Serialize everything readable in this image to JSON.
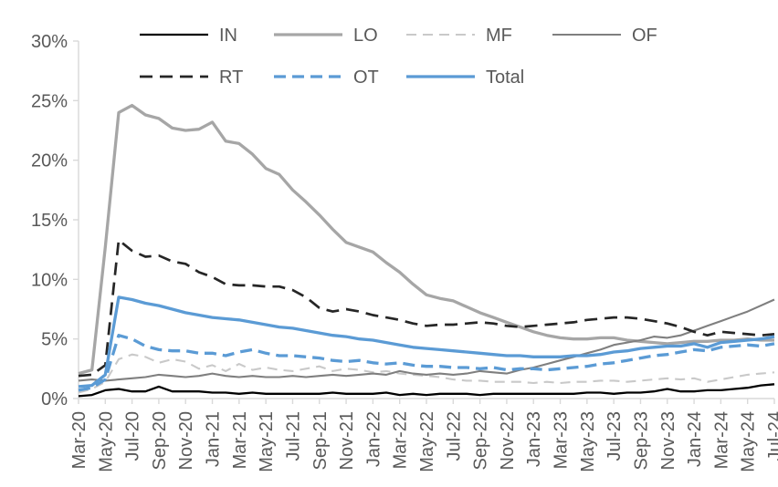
{
  "page": {
    "background": "#ffffff"
  },
  "chart_data": {
    "type": "line",
    "title": "",
    "xlabel": "",
    "ylabel": "",
    "ylim": [
      0,
      30
    ],
    "y_tick_labels": [
      "30%",
      "25%",
      "20%",
      "15%",
      "10%",
      "5%",
      "0%"
    ],
    "x_tick_step": 2,
    "x_tick_labels": [
      "Mar-20",
      "May-20",
      "Jul-20",
      "Sep-20",
      "Nov-20",
      "Jan-21",
      "Mar-21",
      "May-21",
      "Jul-21",
      "Sep-21",
      "Nov-21",
      "Jan-22",
      "Mar-22",
      "May-22",
      "Jul-22",
      "Sep-22",
      "Nov-22",
      "Jan-23",
      "Mar-23",
      "May-23",
      "Jul-23",
      "Sep-23",
      "Nov-23",
      "Jan-24",
      "Mar-24",
      "May-24",
      "Jul-24"
    ],
    "categories": [
      "Mar-20",
      "Apr-20",
      "May-20",
      "Jun-20",
      "Jul-20",
      "Aug-20",
      "Sep-20",
      "Oct-20",
      "Nov-20",
      "Dec-20",
      "Jan-21",
      "Feb-21",
      "Mar-21",
      "Apr-21",
      "May-21",
      "Jun-21",
      "Jul-21",
      "Aug-21",
      "Sep-21",
      "Oct-21",
      "Nov-21",
      "Dec-21",
      "Jan-22",
      "Feb-22",
      "Mar-22",
      "Apr-22",
      "May-22",
      "Jun-22",
      "Jul-22",
      "Aug-22",
      "Sep-22",
      "Oct-22",
      "Nov-22",
      "Dec-22",
      "Jan-23",
      "Feb-23",
      "Mar-23",
      "Apr-23",
      "May-23",
      "Jun-23",
      "Jul-23",
      "Aug-23",
      "Sep-23",
      "Oct-23",
      "Nov-23",
      "Dec-23",
      "Jan-24",
      "Feb-24",
      "Mar-24",
      "Apr-24",
      "May-24",
      "Jun-24",
      "Jul-24"
    ],
    "grid": false,
    "axis_color": "#d9d9d9",
    "text_color": "#595959",
    "accent_blue": "#5b9bd5",
    "legend": {
      "position": "top",
      "rows": [
        [
          "IN",
          "LO",
          "MF",
          "OF"
        ],
        [
          "RT",
          "OT",
          "Total"
        ]
      ]
    },
    "series": [
      {
        "name": "IN",
        "color": "#000000",
        "dash": null,
        "width": 2.3,
        "values": [
          0.2,
          0.3,
          0.7,
          0.8,
          0.6,
          0.6,
          1.0,
          0.6,
          0.6,
          0.6,
          0.5,
          0.5,
          0.4,
          0.5,
          0.4,
          0.4,
          0.4,
          0.4,
          0.4,
          0.5,
          0.4,
          0.4,
          0.4,
          0.5,
          0.3,
          0.4,
          0.3,
          0.4,
          0.4,
          0.4,
          0.3,
          0.4,
          0.4,
          0.4,
          0.4,
          0.4,
          0.4,
          0.4,
          0.5,
          0.5,
          0.4,
          0.5,
          0.5,
          0.6,
          0.8,
          0.6,
          0.6,
          0.7,
          0.7,
          0.8,
          0.9,
          1.1,
          1.2
        ]
      },
      {
        "name": "LO",
        "color": "#a6a6a6",
        "dash": null,
        "width": 3.3,
        "values": [
          2.1,
          2.4,
          12.7,
          24.0,
          24.6,
          23.8,
          23.5,
          22.7,
          22.5,
          22.6,
          23.2,
          21.6,
          21.4,
          20.5,
          19.3,
          18.8,
          17.5,
          16.5,
          15.4,
          14.2,
          13.1,
          12.7,
          12.3,
          11.4,
          10.6,
          9.6,
          8.7,
          8.4,
          8.2,
          7.7,
          7.2,
          6.8,
          6.4,
          6.0,
          5.6,
          5.3,
          5.1,
          5.0,
          5.0,
          5.1,
          5.1,
          4.9,
          4.8,
          4.7,
          4.6,
          4.7,
          4.8,
          4.8,
          4.9,
          4.9,
          5.0,
          4.9,
          4.9
        ]
      },
      {
        "name": "MF",
        "color": "#c9c9c9",
        "dash": "11 7",
        "width": 2.1,
        "values": [
          0.5,
          0.8,
          1.4,
          3.3,
          3.7,
          3.5,
          3.0,
          3.3,
          3.1,
          2.5,
          2.8,
          2.3,
          2.9,
          2.4,
          2.6,
          2.4,
          2.3,
          2.5,
          2.7,
          2.3,
          2.5,
          2.4,
          2.2,
          2.3,
          2.1,
          2.0,
          1.9,
          1.8,
          1.6,
          1.5,
          1.5,
          1.4,
          1.4,
          1.4,
          1.3,
          1.4,
          1.3,
          1.4,
          1.4,
          1.5,
          1.5,
          1.4,
          1.5,
          1.6,
          1.7,
          1.6,
          1.7,
          1.4,
          1.6,
          1.8,
          2.0,
          2.1,
          2.2
        ]
      },
      {
        "name": "OF",
        "color": "#7f7f7f",
        "dash": null,
        "width": 2.1,
        "values": [
          1.5,
          1.6,
          1.5,
          1.6,
          1.7,
          1.8,
          2.0,
          1.9,
          1.8,
          1.9,
          2.1,
          1.9,
          1.8,
          1.9,
          1.8,
          1.8,
          1.9,
          1.8,
          1.9,
          2.0,
          1.9,
          2.0,
          2.1,
          2.0,
          2.3,
          2.1,
          2.0,
          2.1,
          2.0,
          2.1,
          2.3,
          2.2,
          2.1,
          2.4,
          2.6,
          2.9,
          3.2,
          3.5,
          3.8,
          4.1,
          4.5,
          4.7,
          4.9,
          5.2,
          5.1,
          5.3,
          5.7,
          6.1,
          6.5,
          6.9,
          7.3,
          7.8,
          8.3
        ]
      },
      {
        "name": "RT",
        "color": "#262626",
        "dash": "14 8",
        "width": 2.7,
        "values": [
          1.9,
          2.0,
          2.8,
          13.3,
          12.4,
          11.9,
          12.0,
          11.5,
          11.3,
          10.6,
          10.2,
          9.6,
          9.5,
          9.5,
          9.4,
          9.4,
          9.1,
          8.5,
          7.6,
          7.3,
          7.5,
          7.3,
          7.0,
          6.8,
          6.6,
          6.3,
          6.1,
          6.2,
          6.2,
          6.3,
          6.4,
          6.3,
          6.1,
          6.0,
          6.1,
          6.2,
          6.3,
          6.4,
          6.6,
          6.7,
          6.8,
          6.8,
          6.7,
          6.5,
          6.3,
          6.0,
          5.6,
          5.3,
          5.6,
          5.5,
          5.4,
          5.3,
          5.4
        ]
      },
      {
        "name": "OT",
        "color": "#5b9bd5",
        "dash": "13 7",
        "width": 3.3,
        "values": [
          0.7,
          0.9,
          1.6,
          5.3,
          5.0,
          4.4,
          4.1,
          4.0,
          4.0,
          3.8,
          3.8,
          3.6,
          3.9,
          4.1,
          3.8,
          3.6,
          3.6,
          3.5,
          3.4,
          3.2,
          3.1,
          3.2,
          3.0,
          2.9,
          3.0,
          2.8,
          2.7,
          2.7,
          2.6,
          2.6,
          2.5,
          2.6,
          2.4,
          2.5,
          2.5,
          2.4,
          2.5,
          2.6,
          2.7,
          2.9,
          3.0,
          3.2,
          3.4,
          3.6,
          3.7,
          3.9,
          4.1,
          4.0,
          4.3,
          4.4,
          4.5,
          4.4,
          4.6
        ]
      },
      {
        "name": "Total",
        "color": "#5b9bd5",
        "dash": null,
        "width": 3.3,
        "values": [
          1.0,
          1.1,
          2.0,
          8.5,
          8.3,
          8.0,
          7.8,
          7.5,
          7.2,
          7.0,
          6.8,
          6.7,
          6.6,
          6.4,
          6.2,
          6.0,
          5.9,
          5.7,
          5.5,
          5.3,
          5.2,
          5.0,
          4.9,
          4.7,
          4.5,
          4.3,
          4.2,
          4.1,
          4.0,
          3.9,
          3.8,
          3.7,
          3.6,
          3.6,
          3.5,
          3.5,
          3.5,
          3.6,
          3.6,
          3.7,
          3.9,
          4.0,
          4.2,
          4.3,
          4.4,
          4.4,
          4.6,
          4.3,
          4.7,
          4.8,
          4.9,
          5.0,
          5.2
        ]
      }
    ]
  }
}
